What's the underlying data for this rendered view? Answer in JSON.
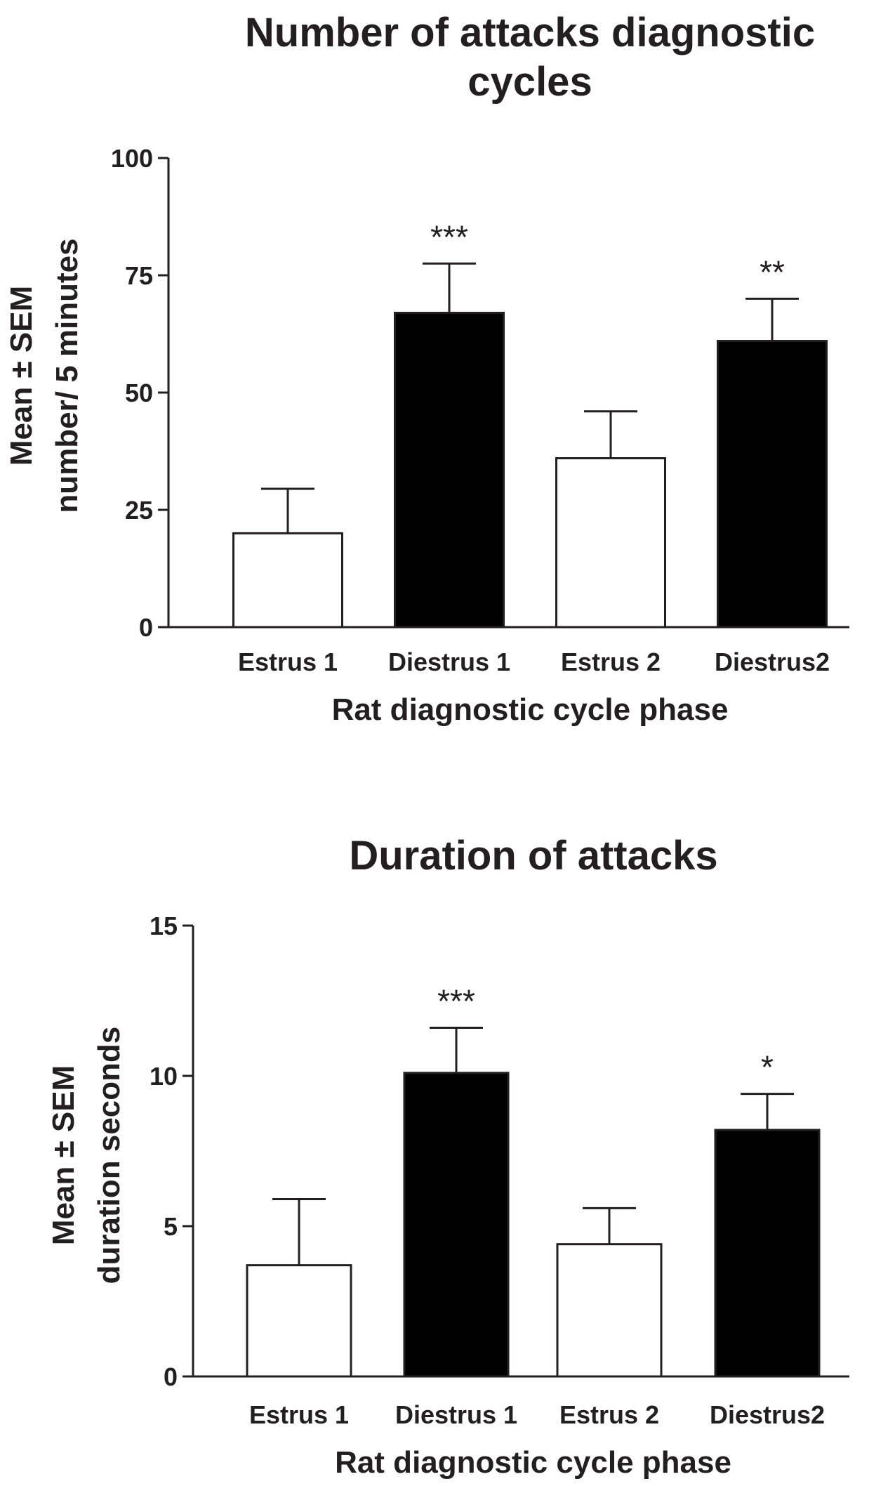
{
  "chart_data": [
    {
      "type": "bar",
      "title_lines": [
        "Number of attacks diagnostic",
        "cycles"
      ],
      "ylabel_lines": [
        "Mean ± SEM",
        "number/ 5 minutes"
      ],
      "xlabel": "Rat diagnostic cycle phase",
      "categories": [
        "Estrus 1",
        "Diestrus 1",
        "Estrus 2",
        "Diestrus2"
      ],
      "values": [
        20,
        67,
        36,
        61
      ],
      "errors": [
        9.5,
        10.5,
        10,
        9
      ],
      "fills": [
        "#ffffff",
        "#000000",
        "#ffffff",
        "#000000"
      ],
      "significance": [
        "",
        "***",
        "",
        "**"
      ],
      "yticks": [
        0,
        25,
        50,
        75,
        100
      ],
      "ylim": [
        0,
        100
      ]
    },
    {
      "type": "bar",
      "title_lines": [
        "Duration of attacks"
      ],
      "ylabel_lines": [
        "Mean ± SEM",
        "duration seconds"
      ],
      "xlabel": "Rat diagnostic cycle phase",
      "categories": [
        "Estrus 1",
        "Diestrus 1",
        "Estrus 2",
        "Diestrus2"
      ],
      "values": [
        3.7,
        10.1,
        4.4,
        8.2
      ],
      "errors": [
        2.2,
        1.5,
        1.2,
        1.2
      ],
      "fills": [
        "#ffffff",
        "#000000",
        "#ffffff",
        "#000000"
      ],
      "significance": [
        "",
        "***",
        "",
        "*"
      ],
      "yticks": [
        0,
        5,
        10,
        15
      ],
      "ylim": [
        0,
        15
      ]
    }
  ]
}
